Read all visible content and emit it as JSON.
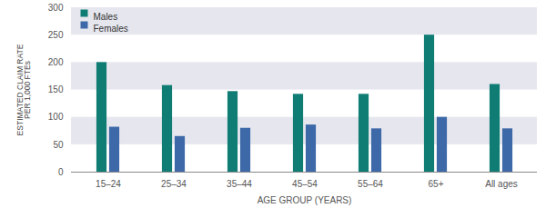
{
  "chart_data": {
    "type": "bar",
    "categories": [
      "15–24",
      "25–34",
      "35–44",
      "45–54",
      "55–64",
      "65+",
      "All ages"
    ],
    "series": [
      {
        "name": "Males",
        "color": "#0f7d73",
        "values": [
          200,
          158,
          147,
          142,
          142,
          250,
          160
        ]
      },
      {
        "name": "Females",
        "color": "#3d69a8",
        "values": [
          82,
          65,
          80,
          86,
          79,
          100,
          79
        ]
      }
    ],
    "x_label": "AGE GROUP (YEARS)",
    "y_label": "ESTIMATED CLAIM RATE PER 1,000 FTEs",
    "ylim": [
      0,
      300
    ],
    "yticks": [
      0,
      50,
      100,
      150,
      200,
      250,
      300
    ],
    "grid": true,
    "legend": "top-left"
  }
}
